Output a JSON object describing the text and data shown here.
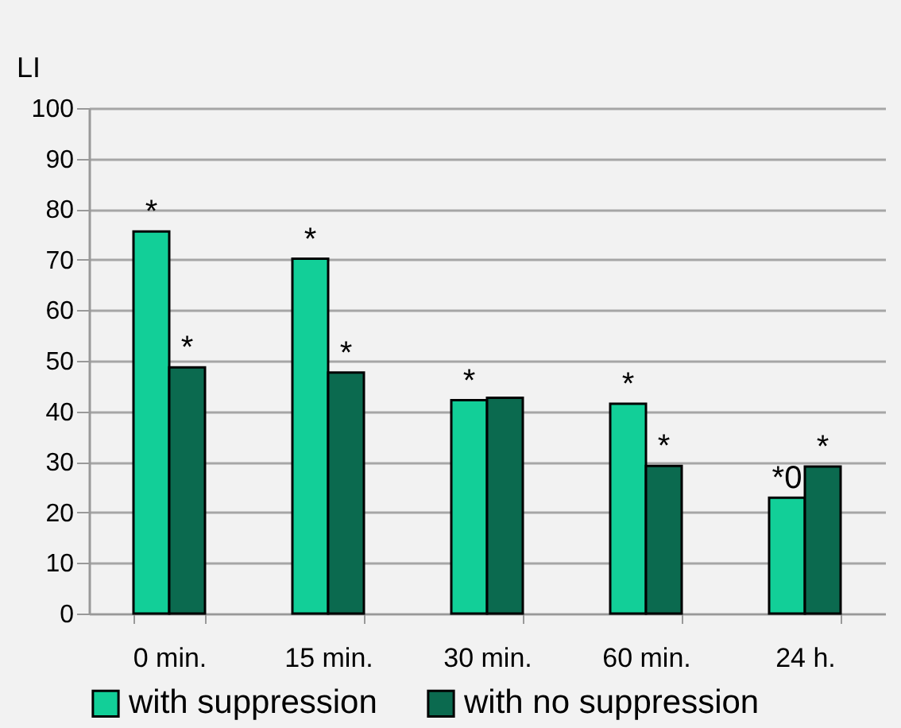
{
  "chart_data": {
    "type": "bar",
    "ylabel": "LI",
    "categories": [
      "0 min.",
      "15 min.",
      "30 min.",
      "60 min.",
      "24 h."
    ],
    "series": [
      {
        "name": "with  suppression",
        "color": "#12cf98",
        "values": [
          75.6,
          70.2,
          42.2,
          41.5,
          22.9
        ]
      },
      {
        "name": "with no suppression",
        "color": "#0b6a4f",
        "values": [
          48.7,
          47.7,
          42.7,
          29.2,
          29.1
        ]
      }
    ],
    "ylim": [
      0,
      100
    ],
    "yticks": [
      0,
      10,
      20,
      30,
      40,
      50,
      60,
      70,
      80,
      90,
      100
    ],
    "grid": "y",
    "legend": "bottom",
    "annotations": [
      {
        "text": "*",
        "x": "0 min.",
        "y": 75.6
      },
      {
        "text": "*",
        "x": "0 min.",
        "y": 48.7
      },
      {
        "text": "*",
        "x": "15 min.",
        "y": 70.2
      },
      {
        "text": "*",
        "x": "15 min.",
        "y": 47.7
      },
      {
        "text": "*",
        "x": "30 min.",
        "y": 42.2
      },
      {
        "text": "*",
        "x": "60 min.",
        "y": 41.5
      },
      {
        "text": "*",
        "x": "60 min.",
        "y": 29.2
      },
      {
        "text": "*0",
        "x": "24 h.",
        "y": 22.9
      },
      {
        "text": "*",
        "x": "24 h.",
        "y": 29.1
      }
    ]
  }
}
